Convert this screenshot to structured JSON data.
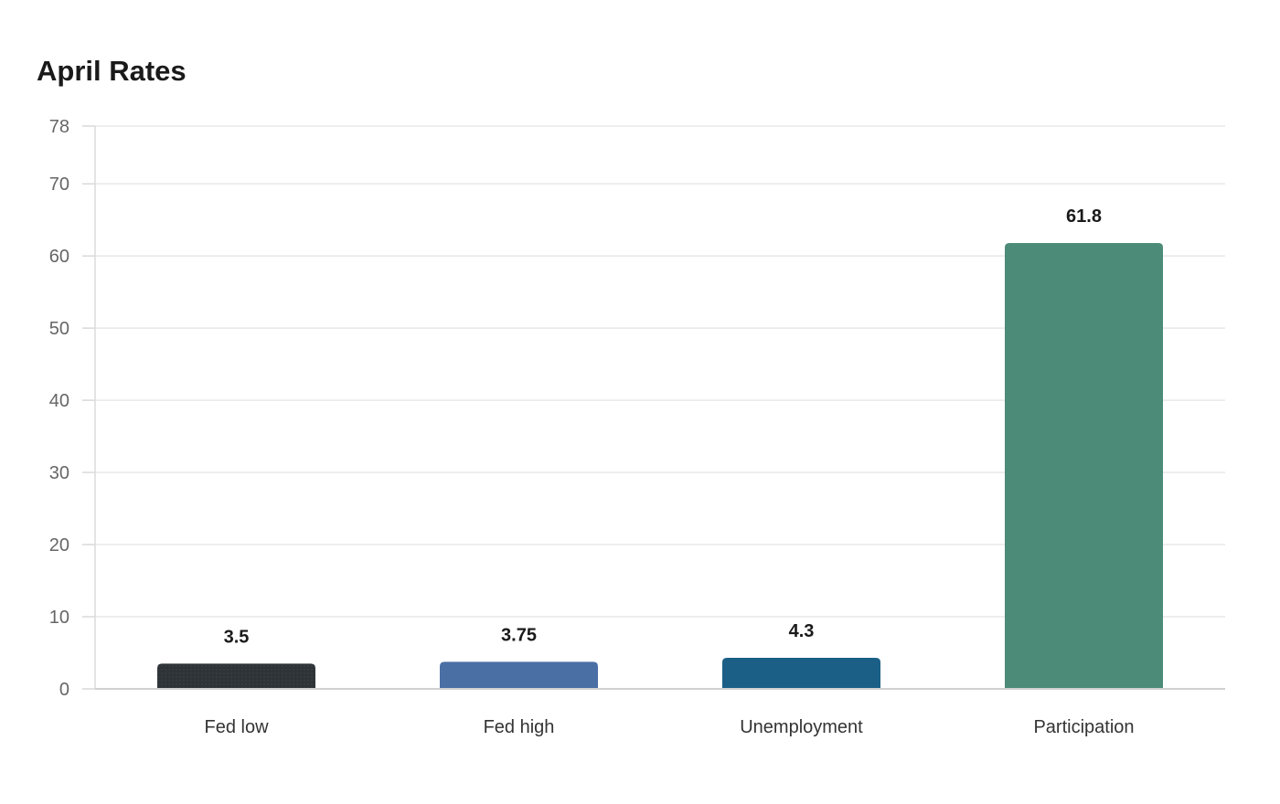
{
  "chart_data": {
    "type": "bar",
    "title": "April Rates",
    "xlabel": "",
    "ylabel": "",
    "categories": [
      "Fed low",
      "Fed high",
      "Unemployment",
      "Participation"
    ],
    "values": [
      3.5,
      3.75,
      4.3,
      61.8
    ],
    "data_labels": [
      "3.5",
      "3.75",
      "4.3",
      "61.8"
    ],
    "colors": [
      "#2e3338",
      "#4a6fa5",
      "#1b5f86",
      "#4d8b79"
    ],
    "ylim": [
      0,
      78
    ],
    "yticks": [
      0,
      10,
      20,
      30,
      40,
      50,
      60,
      70,
      78
    ],
    "grid": true,
    "legend": "none"
  }
}
